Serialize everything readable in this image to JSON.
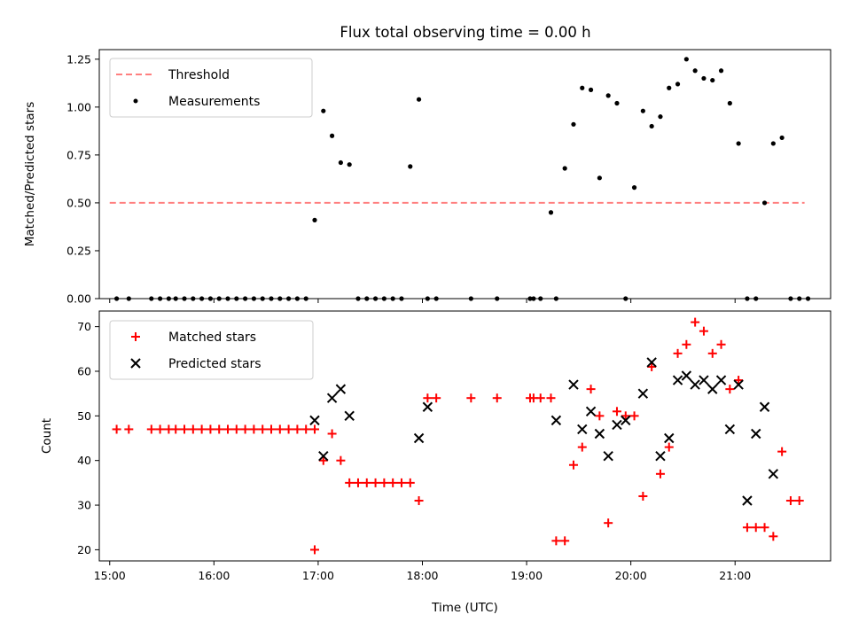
{
  "chart_data": [
    {
      "type": "scatter",
      "title": "Flux total observing time = 0.00 h",
      "xlabel": "",
      "ylabel": "Matched/Predicted stars",
      "ylim": [
        0,
        1.3
      ],
      "y_ticks": [
        "0.00",
        "0.25",
        "0.50",
        "0.75",
        "1.00",
        "1.25"
      ],
      "legend_position": "top-left",
      "threshold": {
        "name": "Threshold",
        "value": 0.5,
        "x_range": [
          "15:00",
          "21:40"
        ],
        "color": "#ff7f7f"
      },
      "series": [
        {
          "name": "Measurements",
          "color": "#000000",
          "x": [
            "15:04",
            "15:11",
            "15:24",
            "15:29",
            "15:34",
            "15:38",
            "15:43",
            "15:48",
            "15:53",
            "15:58",
            "16:03",
            "16:08",
            "16:13",
            "16:18",
            "16:23",
            "16:28",
            "16:33",
            "16:38",
            "16:43",
            "16:48",
            "16:53",
            "16:58",
            "17:03",
            "17:08",
            "17:13",
            "17:18",
            "17:23",
            "17:28",
            "17:33",
            "17:38",
            "17:43",
            "17:48",
            "17:53",
            "17:58",
            "18:03",
            "18:08",
            "18:28",
            "18:43",
            "19:02",
            "19:04",
            "19:08",
            "19:14",
            "19:17",
            "19:22",
            "19:27",
            "19:32",
            "19:37",
            "19:42",
            "19:47",
            "19:52",
            "19:57",
            "20:02",
            "20:07",
            "20:12",
            "20:17",
            "20:22",
            "20:27",
            "20:32",
            "20:37",
            "20:42",
            "20:47",
            "20:52",
            "20:57",
            "21:02",
            "21:07",
            "21:12",
            "21:17",
            "21:22",
            "21:27",
            "21:32",
            "21:37",
            "21:42"
          ],
          "y": [
            0,
            0,
            0,
            0,
            0,
            0,
            0,
            0,
            0,
            0,
            0,
            0,
            0,
            0,
            0,
            0,
            0,
            0,
            0,
            0,
            0,
            0.41,
            0.98,
            0.85,
            0.71,
            0.7,
            0,
            0,
            0,
            0,
            0,
            0,
            0.69,
            1.04,
            0,
            0,
            0,
            0,
            0,
            0,
            0,
            0.45,
            0,
            0.68,
            0.91,
            1.1,
            1.09,
            0.63,
            1.06,
            1.02,
            0,
            0.58,
            0.98,
            0.9,
            0.95,
            1.1,
            1.12,
            1.25,
            1.19,
            1.15,
            1.14,
            1.19,
            1.02,
            0.81,
            0,
            0,
            0.5,
            0.81,
            0.84,
            0,
            0,
            0
          ]
        }
      ]
    },
    {
      "type": "scatter",
      "title": "",
      "xlabel": "Time (UTC)",
      "ylabel": "Count",
      "ylim": [
        17.5,
        73.5
      ],
      "y_ticks": [
        "20",
        "30",
        "40",
        "50",
        "60",
        "70"
      ],
      "x_ticks": [
        "15:00",
        "16:00",
        "17:00",
        "18:00",
        "19:00",
        "20:00",
        "21:00"
      ],
      "legend_position": "top-left",
      "series": [
        {
          "name": "Matched stars",
          "marker": "plus",
          "color": "#ff0000",
          "x": [
            "15:04",
            "15:11",
            "15:24",
            "15:29",
            "15:34",
            "15:38",
            "15:43",
            "15:48",
            "15:53",
            "15:58",
            "16:03",
            "16:08",
            "16:13",
            "16:18",
            "16:23",
            "16:28",
            "16:33",
            "16:38",
            "16:43",
            "16:48",
            "16:53",
            "16:58",
            "16:58",
            "17:03",
            "17:08",
            "17:13",
            "17:18",
            "17:23",
            "17:28",
            "17:33",
            "17:38",
            "17:43",
            "17:48",
            "17:53",
            "17:58",
            "18:03",
            "18:08",
            "18:28",
            "18:43",
            "19:02",
            "19:04",
            "19:08",
            "19:14",
            "19:17",
            "19:22",
            "19:27",
            "19:32",
            "19:37",
            "19:42",
            "19:47",
            "19:52",
            "19:57",
            "20:02",
            "20:07",
            "20:12",
            "20:17",
            "20:22",
            "20:27",
            "20:32",
            "20:37",
            "20:42",
            "20:47",
            "20:52",
            "20:57",
            "21:02",
            "21:07",
            "21:12",
            "21:17",
            "21:22",
            "21:27",
            "21:32",
            "21:37"
          ],
          "y": [
            47,
            47,
            47,
            47,
            47,
            47,
            47,
            47,
            47,
            47,
            47,
            47,
            47,
            47,
            47,
            47,
            47,
            47,
            47,
            47,
            47,
            47,
            20,
            40,
            46,
            40,
            35,
            35,
            35,
            35,
            35,
            35,
            35,
            35,
            31,
            54,
            54,
            54,
            54,
            54,
            54,
            54,
            54,
            22,
            22,
            39,
            43,
            56,
            50,
            26,
            51,
            50,
            50,
            32,
            61,
            37,
            43,
            64,
            66,
            71,
            69,
            64,
            66,
            56,
            58,
            25,
            25,
            25,
            23,
            42,
            31,
            31
          ]
        },
        {
          "name": "Predicted stars",
          "marker": "x",
          "color": "#000000",
          "x": [
            "16:58",
            "17:03",
            "17:08",
            "17:13",
            "17:18",
            "17:58",
            "18:03",
            "19:17",
            "19:27",
            "19:32",
            "19:37",
            "19:42",
            "19:47",
            "19:52",
            "19:57",
            "20:07",
            "20:12",
            "20:17",
            "20:22",
            "20:27",
            "20:32",
            "20:37",
            "20:42",
            "20:47",
            "20:52",
            "20:57",
            "21:02",
            "21:07",
            "21:12",
            "21:17",
            "21:22"
          ],
          "y": [
            49,
            41,
            54,
            56,
            50,
            45,
            52,
            49,
            57,
            47,
            51,
            46,
            41,
            48,
            49,
            55,
            62,
            41,
            45,
            58,
            59,
            57,
            58,
            56,
            58,
            47,
            57,
            31,
            46,
            52,
            37
          ]
        }
      ]
    }
  ]
}
